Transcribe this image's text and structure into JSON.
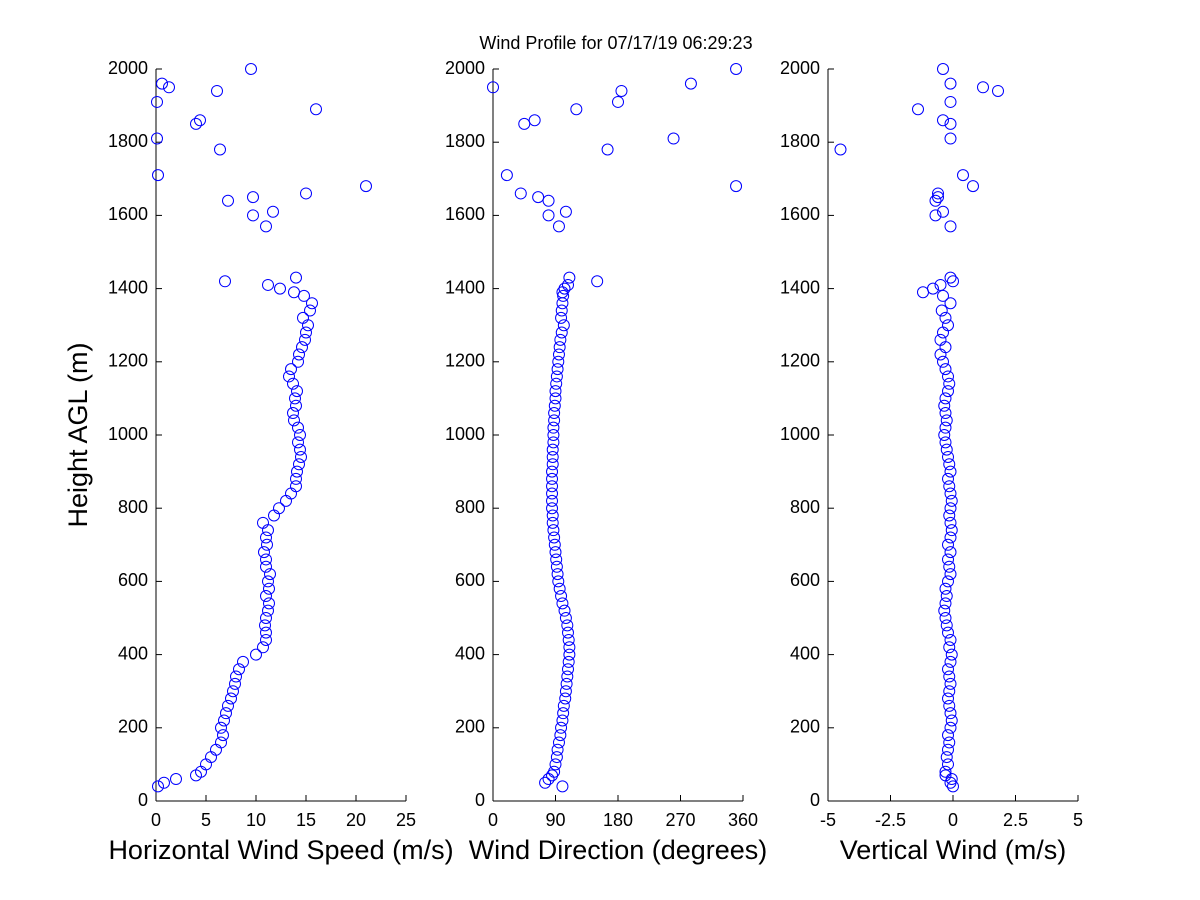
{
  "chart_data": [
    {
      "type": "scatter",
      "title": "Wind Profile for  07/17/19 06:29:23",
      "xlabel": "Horizontal Wind Speed (m/s)",
      "ylabel": "Height AGL (m)",
      "color": "#0000ff",
      "xlim": [
        0,
        25
      ],
      "xticks": [
        0,
        5,
        10,
        15,
        20,
        25
      ],
      "ylim": [
        0,
        2000
      ],
      "yticks": [
        0,
        200,
        400,
        600,
        800,
        1000,
        1200,
        1400,
        1600,
        1800,
        2000
      ],
      "x": [
        0.2,
        0.8,
        2,
        4,
        4.5,
        5,
        5.5,
        6,
        6.5,
        6.7,
        6.5,
        6.8,
        7,
        7.2,
        7.5,
        7.7,
        7.9,
        8,
        8.3,
        8.7,
        10,
        10.7,
        11,
        11,
        10.9,
        11,
        11.2,
        11.3,
        11,
        11.3,
        11.2,
        11.4,
        11,
        11,
        10.8,
        11.1,
        11,
        11.2,
        10.7,
        11.8,
        12.3,
        13,
        13.5,
        14,
        14,
        14.1,
        14.3,
        14.5,
        14.4,
        14.2,
        14.4,
        14.2,
        13.8,
        13.7,
        14,
        13.9,
        14.1,
        13.7,
        13.3,
        13.5,
        14.2,
        14.3,
        14.6,
        14.9,
        15,
        15.2,
        14.7,
        15.4,
        15.6,
        14.8,
        14,
        6.9,
        11.2,
        12.4,
        13.8,
        11,
        9.7,
        11.7,
        7.2,
        9.7,
        15,
        21,
        0.2,
        6.4,
        0.1,
        4,
        4.4,
        16,
        0.1,
        6.1,
        1.3,
        0.6,
        9.5
      ],
      "y": [
        40,
        50,
        60,
        70,
        80,
        100,
        120,
        140,
        160,
        180,
        200,
        220,
        240,
        260,
        280,
        300,
        320,
        340,
        360,
        380,
        400,
        420,
        440,
        460,
        480,
        500,
        520,
        540,
        560,
        580,
        600,
        620,
        640,
        660,
        680,
        700,
        720,
        740,
        760,
        780,
        800,
        820,
        840,
        860,
        880,
        900,
        920,
        940,
        960,
        980,
        1000,
        1020,
        1040,
        1060,
        1080,
        1100,
        1120,
        1140,
        1160,
        1180,
        1200,
        1220,
        1240,
        1260,
        1280,
        1300,
        1320,
        1340,
        1360,
        1380,
        1430,
        1420,
        1410,
        1400,
        1390,
        1570,
        1600,
        1610,
        1640,
        1650,
        1660,
        1680,
        1710,
        1780,
        1810,
        1850,
        1860,
        1890,
        1910,
        1940,
        1950,
        1960,
        2000
      ]
    },
    {
      "type": "scatter",
      "xlabel": "Wind Direction (degrees)",
      "color": "#0000ff",
      "xlim": [
        0,
        360
      ],
      "xticks": [
        0,
        90,
        180,
        270,
        360
      ],
      "ylim": [
        0,
        2000
      ],
      "yticks": [
        0,
        200,
        400,
        600,
        800,
        1000,
        1200,
        1400,
        1600,
        1800,
        2000
      ],
      "x": [
        100,
        75,
        80,
        85,
        88,
        90,
        92,
        93,
        95,
        97,
        98,
        100,
        101,
        102,
        104,
        105,
        106,
        107,
        108,
        109,
        110,
        110,
        109,
        108,
        107,
        105,
        103,
        100,
        98,
        96,
        94,
        93,
        92,
        91,
        90,
        89,
        88,
        87,
        86,
        86,
        85,
        85,
        85,
        85,
        85,
        85,
        86,
        86,
        86,
        87,
        87,
        87,
        88,
        88,
        89,
        90,
        90,
        91,
        92,
        93,
        94,
        95,
        96,
        97,
        99,
        102,
        98,
        99,
        100,
        101,
        110,
        150,
        108,
        103,
        100,
        95,
        80,
        105,
        80,
        65,
        40,
        350,
        20,
        165,
        260,
        45,
        60,
        120,
        180,
        185,
        0,
        285,
        350
      ],
      "y": [
        40,
        50,
        60,
        70,
        80,
        100,
        120,
        140,
        160,
        180,
        200,
        220,
        240,
        260,
        280,
        300,
        320,
        340,
        360,
        380,
        400,
        420,
        440,
        460,
        480,
        500,
        520,
        540,
        560,
        580,
        600,
        620,
        640,
        660,
        680,
        700,
        720,
        740,
        760,
        780,
        800,
        820,
        840,
        860,
        880,
        900,
        920,
        940,
        960,
        980,
        1000,
        1020,
        1040,
        1060,
        1080,
        1100,
        1120,
        1140,
        1160,
        1180,
        1200,
        1220,
        1240,
        1260,
        1280,
        1300,
        1320,
        1340,
        1360,
        1380,
        1430,
        1420,
        1410,
        1400,
        1390,
        1570,
        1600,
        1610,
        1640,
        1650,
        1660,
        1680,
        1710,
        1780,
        1810,
        1850,
        1860,
        1890,
        1910,
        1940,
        1950,
        1960,
        2000
      ]
    },
    {
      "type": "scatter",
      "xlabel": "Vertical Wind (m/s)",
      "color": "#0000ff",
      "xlim": [
        -5,
        5
      ],
      "xticks": [
        -5,
        -2.5,
        0,
        2.5,
        5
      ],
      "ylim": [
        0,
        2000
      ],
      "yticks": [
        0,
        200,
        400,
        600,
        800,
        1000,
        1200,
        1400,
        1600,
        1800,
        2000
      ],
      "x": [
        0,
        -0.1,
        -0.05,
        -0.3,
        -0.3,
        -0.2,
        -0.25,
        -0.2,
        -0.15,
        -0.2,
        -0.1,
        -0.05,
        -0.1,
        -0.15,
        -0.2,
        -0.15,
        -0.1,
        -0.15,
        -0.2,
        -0.1,
        -0.05,
        -0.15,
        -0.1,
        -0.2,
        -0.25,
        -0.3,
        -0.35,
        -0.3,
        -0.25,
        -0.3,
        -0.2,
        -0.1,
        -0.15,
        -0.2,
        -0.1,
        -0.2,
        -0.1,
        -0.05,
        -0.1,
        -0.15,
        -0.1,
        -0.05,
        -0.1,
        -0.15,
        -0.2,
        -0.1,
        -0.15,
        -0.2,
        -0.25,
        -0.3,
        -0.35,
        -0.3,
        -0.25,
        -0.3,
        -0.35,
        -0.3,
        -0.2,
        -0.15,
        -0.2,
        -0.3,
        -0.4,
        -0.5,
        -0.3,
        -0.5,
        -0.4,
        -0.2,
        -0.3,
        -0.45,
        -0.1,
        -0.4,
        -0.1,
        0,
        -0.5,
        -0.8,
        -1.2,
        -0.1,
        -0.7,
        -0.4,
        -0.7,
        -0.6,
        -0.6,
        0.8,
        0.4,
        -4.5,
        -0.1,
        -0.1,
        -0.4,
        -1.4,
        -0.1,
        1.8,
        1.2,
        -0.1,
        -0.4
      ],
      "y": [
        40,
        50,
        60,
        70,
        80,
        100,
        120,
        140,
        160,
        180,
        200,
        220,
        240,
        260,
        280,
        300,
        320,
        340,
        360,
        380,
        400,
        420,
        440,
        460,
        480,
        500,
        520,
        540,
        560,
        580,
        600,
        620,
        640,
        660,
        680,
        700,
        720,
        740,
        760,
        780,
        800,
        820,
        840,
        860,
        880,
        900,
        920,
        940,
        960,
        980,
        1000,
        1020,
        1040,
        1060,
        1080,
        1100,
        1120,
        1140,
        1160,
        1180,
        1200,
        1220,
        1240,
        1260,
        1280,
        1300,
        1320,
        1340,
        1360,
        1380,
        1430,
        1420,
        1410,
        1400,
        1390,
        1570,
        1600,
        1610,
        1640,
        1650,
        1660,
        1680,
        1710,
        1780,
        1810,
        1850,
        1860,
        1890,
        1910,
        1940,
        1950,
        1960,
        2000
      ]
    }
  ]
}
